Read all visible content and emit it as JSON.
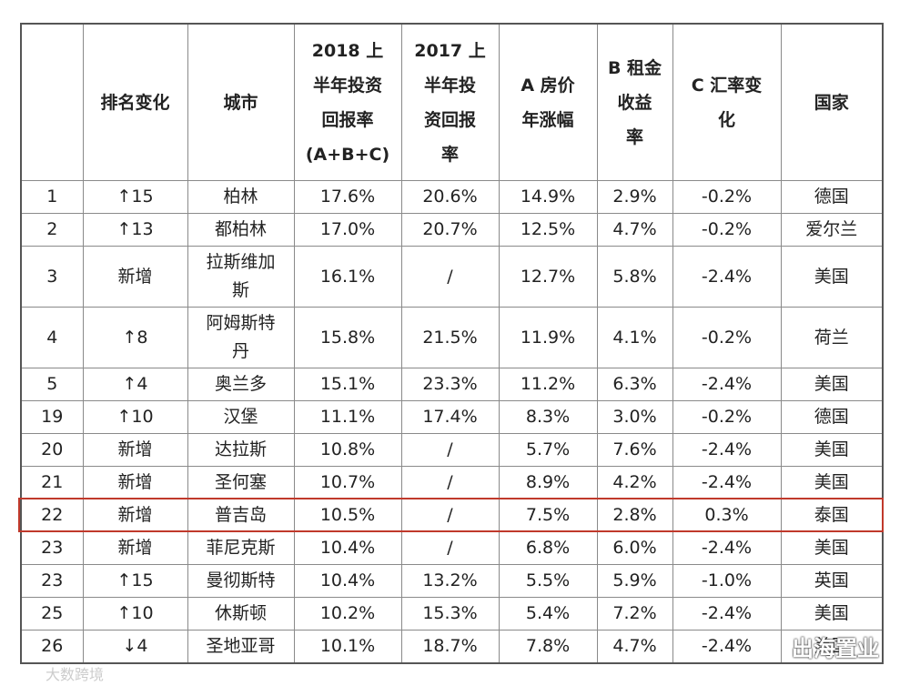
{
  "table": {
    "header": [
      null,
      "排名变化",
      "城市",
      [
        "2018 上",
        "半年投资",
        "回报率",
        "(A+B+C)"
      ],
      [
        "2017 上",
        "半年投",
        "资回报",
        "率"
      ],
      [
        "A 房价",
        "年涨幅"
      ],
      [
        "B 租金",
        "收益",
        "率"
      ],
      [
        "C 汇率变",
        "化"
      ],
      "国家"
    ],
    "rows": [
      [
        "1",
        "↑15",
        "柏林",
        "17.6%",
        "20.6%",
        "14.9%",
        "2.9%",
        "-0.2%",
        "德国"
      ],
      [
        "2",
        "↑13",
        "都柏林",
        "17.0%",
        "20.7%",
        "12.5%",
        "4.7%",
        "-0.2%",
        "爱尔兰"
      ],
      [
        "3",
        "新增",
        "拉斯维加斯",
        "16.1%",
        "/",
        "12.7%",
        "5.8%",
        "-2.4%",
        "美国"
      ],
      [
        "4",
        "↑8",
        "阿姆斯特丹",
        "15.8%",
        "21.5%",
        "11.9%",
        "4.1%",
        "-0.2%",
        "荷兰"
      ],
      [
        "5",
        "↑4",
        "奥兰多",
        "15.1%",
        "23.3%",
        "11.2%",
        "6.3%",
        "-2.4%",
        "美国"
      ],
      [
        "19",
        "↑10",
        "汉堡",
        "11.1%",
        "17.4%",
        "8.3%",
        "3.0%",
        "-0.2%",
        "德国"
      ],
      [
        "20",
        "新增",
        "达拉斯",
        "10.8%",
        "/",
        "5.7%",
        "7.6%",
        "-2.4%",
        "美国"
      ],
      [
        "21",
        "新增",
        "圣何塞",
        "10.7%",
        "/",
        "8.9%",
        "4.2%",
        "-2.4%",
        "美国"
      ],
      [
        "22",
        "新增",
        "普吉岛",
        "10.5%",
        "/",
        "7.5%",
        "2.8%",
        "0.3%",
        "泰国"
      ],
      [
        "23",
        "新增",
        "菲尼克斯",
        "10.4%",
        "/",
        "6.8%",
        "6.0%",
        "-2.4%",
        "美国"
      ],
      [
        "23",
        "↑15",
        "曼彻斯特",
        "10.4%",
        "13.2%",
        "5.5%",
        "5.9%",
        "-1.0%",
        "英国"
      ],
      [
        "25",
        "↑10",
        "休斯顿",
        "10.2%",
        "15.3%",
        "5.4%",
        "7.2%",
        "-2.4%",
        "美国"
      ],
      [
        "26",
        "↓4",
        "圣地亚哥",
        "10.1%",
        "18.7%",
        "7.8%",
        "4.7%",
        "-2.4%",
        "美国"
      ]
    ],
    "highlight_row": 8
  },
  "watermarks": [
    "出海置业",
    "大数跨境"
  ]
}
